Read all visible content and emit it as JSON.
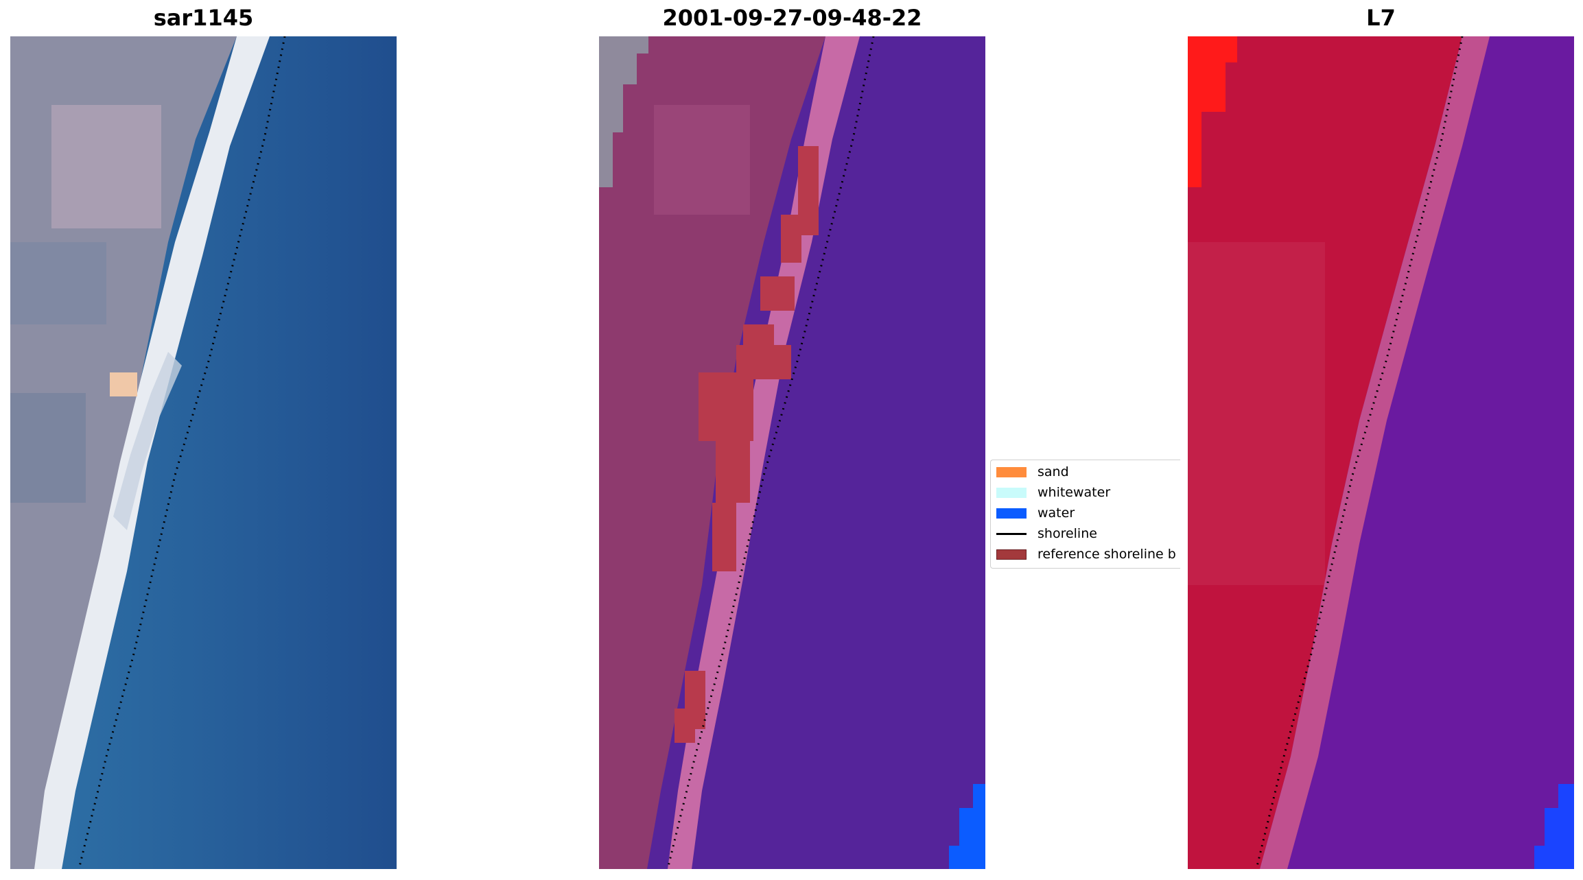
{
  "panels": [
    {
      "title": "sar1145"
    },
    {
      "title": "2001-09-27-09-48-22"
    },
    {
      "title": "L7"
    }
  ],
  "legend": {
    "items": [
      {
        "label": "sand",
        "color": "#ff8c3c",
        "kind": "patch"
      },
      {
        "label": "whitewater",
        "color": "#c9fbfb",
        "kind": "patch"
      },
      {
        "label": "water",
        "color": "#0b5cff",
        "kind": "patch"
      },
      {
        "label": "shoreline",
        "color": "#000000",
        "kind": "line"
      },
      {
        "label": "reference shoreline b",
        "color": "#a3393c",
        "kind": "patch"
      }
    ]
  },
  "colors": {
    "rgb_water": "#2a6aa4",
    "rgb_beach": "#e8ecf0",
    "rgb_land": "#8c90a6",
    "class_water": "#55249a",
    "class_land": "#8e3a6e",
    "class_whitewater_blend": "#c76aa6",
    "class_refbuffer": "#b83a4c",
    "nir_land": "#c0133e",
    "nir_water": "#6a1aa0",
    "nir_bright": "#ff1a1a",
    "water_blue": "#1a44ff"
  }
}
